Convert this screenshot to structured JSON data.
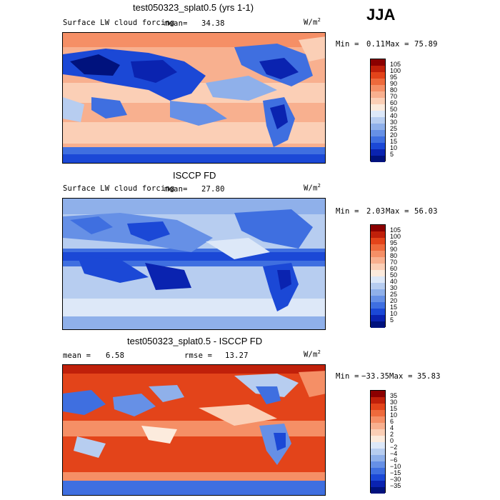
{
  "season": "JJA",
  "panels": [
    {
      "title": "test050323_splat0.5 (yrs 1-1)",
      "left_label": "Surface LW cloud forcing",
      "stat_label": "mean=",
      "stat_value": "34.38",
      "rmse_label": "",
      "rmse_value": "",
      "units": "W/m",
      "units_sup": "2",
      "min_label": "Min =",
      "min_value": "0.11",
      "max_label": "Max =",
      "max_value": "75.89",
      "colorbar_labels": [
        "105",
        "100",
        "95",
        "90",
        "80",
        "70",
        "60",
        "50",
        "40",
        "30",
        "25",
        "20",
        "15",
        "10",
        "5"
      ],
      "colorbar_colors": [
        "#8b0000",
        "#c0200a",
        "#e3441a",
        "#ee6a3c",
        "#f58f66",
        "#f8b08f",
        "#fbcfb6",
        "#fcebdd",
        "#dde8f8",
        "#b7cdf0",
        "#8fb0ea",
        "#6690e6",
        "#3f6fe0",
        "#1b48d6",
        "#0a23b0",
        "#00127d"
      ],
      "chart_data": {
        "type": "heatmap",
        "title": "test050323_splat0.5 (yrs 1-1)",
        "subtitle": "Surface LW cloud forcing",
        "mean": 34.38,
        "min": 0.11,
        "max": 75.89,
        "levels": [
          5,
          10,
          15,
          20,
          25,
          30,
          40,
          50,
          60,
          70,
          80,
          90,
          95,
          100,
          105
        ]
      }
    },
    {
      "title": "ISCCP FD",
      "left_label": "Surface LW cloud forcing",
      "stat_label": "mean=",
      "stat_value": "27.80",
      "rmse_label": "",
      "rmse_value": "",
      "units": "W/m",
      "units_sup": "2",
      "min_label": "Min =",
      "min_value": "2.03",
      "max_label": "Max =",
      "max_value": "56.03",
      "colorbar_labels": [
        "105",
        "100",
        "95",
        "90",
        "80",
        "70",
        "60",
        "50",
        "40",
        "30",
        "25",
        "20",
        "15",
        "10",
        "5"
      ],
      "colorbar_colors": [
        "#8b0000",
        "#c0200a",
        "#e3441a",
        "#ee6a3c",
        "#f58f66",
        "#f8b08f",
        "#fbcfb6",
        "#fcebdd",
        "#dde8f8",
        "#b7cdf0",
        "#8fb0ea",
        "#6690e6",
        "#3f6fe0",
        "#1b48d6",
        "#0a23b0",
        "#00127d"
      ],
      "chart_data": {
        "type": "heatmap",
        "title": "ISCCP FD",
        "subtitle": "Surface LW cloud forcing",
        "mean": 27.8,
        "min": 2.03,
        "max": 56.03,
        "levels": [
          5,
          10,
          15,
          20,
          25,
          30,
          40,
          50,
          60,
          70,
          80,
          90,
          95,
          100,
          105
        ]
      }
    },
    {
      "title": "test050323_splat0.5 - ISCCP FD",
      "left_label": "",
      "stat_label": "mean =",
      "stat_value": "6.58",
      "rmse_label": "rmse =",
      "rmse_value": "13.27",
      "units": "W/m",
      "units_sup": "2",
      "min_label": "Min =",
      "min_value": "−33.35",
      "max_label": "Max =",
      "max_value": "35.83",
      "colorbar_labels": [
        "35",
        "30",
        "15",
        "10",
        "6",
        "4",
        "2",
        "0",
        "−2",
        "−4",
        "−6",
        "−10",
        "−15",
        "−30",
        "−35"
      ],
      "colorbar_colors": [
        "#8b0000",
        "#c0200a",
        "#e3441a",
        "#ee6a3c",
        "#f58f66",
        "#f8b08f",
        "#fbcfb6",
        "#fcebdd",
        "#dde8f8",
        "#b7cdf0",
        "#8fb0ea",
        "#6690e6",
        "#3f6fe0",
        "#1b48d6",
        "#0a23b0",
        "#00127d"
      ],
      "chart_data": {
        "type": "heatmap",
        "title": "test050323_splat0.5 - ISCCP FD",
        "mean": 6.58,
        "rmse": 13.27,
        "min": -33.35,
        "max": 35.83,
        "levels": [
          -35,
          -30,
          -15,
          -10,
          -6,
          -4,
          -2,
          0,
          2,
          4,
          6,
          10,
          15,
          30,
          35
        ]
      }
    }
  ]
}
